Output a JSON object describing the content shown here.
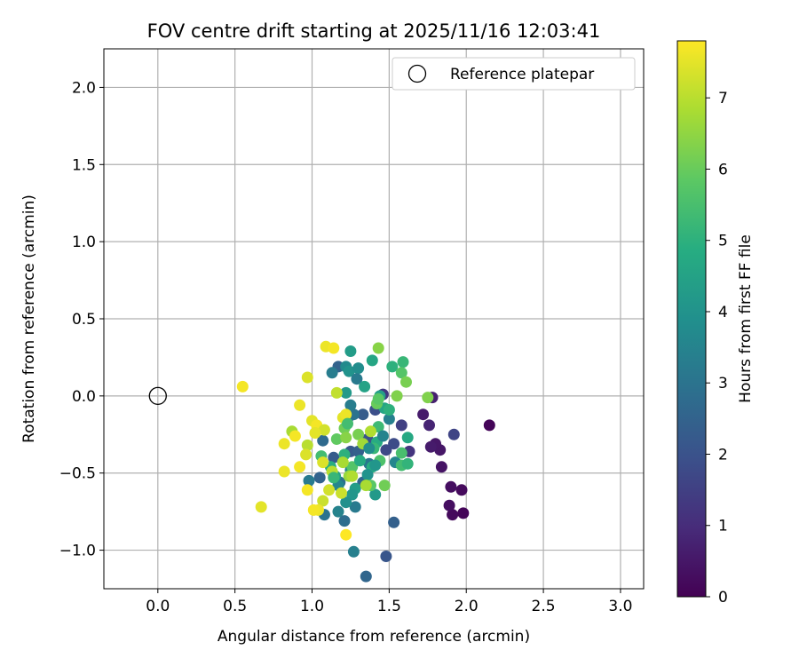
{
  "chart_data": {
    "type": "scatter",
    "title": "FOV centre drift starting at 2025/11/16 12:03:41",
    "xlabel": "Angular distance from reference (arcmin)",
    "ylabel": "Rotation from reference (arcmin)",
    "xlim": [
      -0.35,
      3.15
    ],
    "ylim": [
      -1.25,
      2.25
    ],
    "xticks": [
      0.0,
      0.5,
      1.0,
      1.5,
      2.0,
      2.5,
      3.0
    ],
    "xtick_labels": [
      "0.0",
      "0.5",
      "1.0",
      "1.5",
      "2.0",
      "2.5",
      "3.0"
    ],
    "yticks": [
      -1.0,
      -0.5,
      0.0,
      0.5,
      1.0,
      1.5,
      2.0
    ],
    "ytick_labels": [
      "−1.0",
      "−0.5",
      "0.0",
      "0.5",
      "1.0",
      "1.5",
      "2.0"
    ],
    "grid": true,
    "legend": {
      "placement": "top-right",
      "entries": [
        "Reference platepar"
      ]
    },
    "reference_point": {
      "x": 0.0,
      "y": 0.0,
      "label": "Reference platepar"
    },
    "colorbar": {
      "label": "Hours from first FF file",
      "colormap": "viridis",
      "range": [
        0,
        7.8
      ],
      "ticks": [
        0,
        1,
        2,
        3,
        4,
        5,
        6,
        7
      ],
      "tick_labels": [
        "0",
        "1",
        "2",
        "3",
        "4",
        "5",
        "6",
        "7"
      ]
    },
    "points": [
      {
        "x": 2.15,
        "y": -0.19,
        "h": 0.1
      },
      {
        "x": 1.98,
        "y": -0.76,
        "h": 0.1
      },
      {
        "x": 1.91,
        "y": -0.77,
        "h": 0.2
      },
      {
        "x": 1.97,
        "y": -0.61,
        "h": 0.2
      },
      {
        "x": 1.89,
        "y": -0.71,
        "h": 0.3
      },
      {
        "x": 1.9,
        "y": -0.59,
        "h": 0.3
      },
      {
        "x": 1.84,
        "y": -0.46,
        "h": 0.4
      },
      {
        "x": 1.83,
        "y": -0.35,
        "h": 0.5
      },
      {
        "x": 1.8,
        "y": -0.31,
        "h": 0.5
      },
      {
        "x": 1.77,
        "y": -0.33,
        "h": 0.6
      },
      {
        "x": 1.72,
        "y": -0.12,
        "h": 0.6
      },
      {
        "x": 1.78,
        "y": -0.01,
        "h": 0.7
      },
      {
        "x": 1.76,
        "y": -0.19,
        "h": 0.8
      },
      {
        "x": 1.92,
        "y": -0.25,
        "h": 1.6
      },
      {
        "x": 1.63,
        "y": -0.36,
        "h": 1.2
      },
      {
        "x": 1.58,
        "y": -0.19,
        "h": 1.5
      },
      {
        "x": 1.53,
        "y": -0.31,
        "h": 1.8
      },
      {
        "x": 1.46,
        "y": 0.01,
        "h": 1.3
      },
      {
        "x": 1.41,
        "y": -0.09,
        "h": 1.9
      },
      {
        "x": 1.48,
        "y": -0.35,
        "h": 1.7
      },
      {
        "x": 1.48,
        "y": -1.04,
        "h": 2.1
      },
      {
        "x": 1.53,
        "y": -0.82,
        "h": 2.4
      },
      {
        "x": 1.35,
        "y": -1.17,
        "h": 2.6
      },
      {
        "x": 1.27,
        "y": -1.01,
        "h": 3.4
      },
      {
        "x": 1.25,
        "y": -0.36,
        "h": 2.2
      },
      {
        "x": 1.21,
        "y": -0.81,
        "h": 2.8
      },
      {
        "x": 1.28,
        "y": -0.72,
        "h": 3.2
      },
      {
        "x": 1.17,
        "y": -0.75,
        "h": 3.5
      },
      {
        "x": 1.08,
        "y": -0.77,
        "h": 3.0
      },
      {
        "x": 1.05,
        "y": -0.53,
        "h": 2.5
      },
      {
        "x": 0.98,
        "y": -0.55,
        "h": 3.2
      },
      {
        "x": 1.07,
        "y": -0.29,
        "h": 2.7
      },
      {
        "x": 1.14,
        "y": -0.4,
        "h": 2.3
      },
      {
        "x": 1.18,
        "y": -0.56,
        "h": 2.9
      },
      {
        "x": 1.25,
        "y": -0.48,
        "h": 3.6
      },
      {
        "x": 1.33,
        "y": -0.56,
        "h": 2.6
      },
      {
        "x": 1.37,
        "y": -0.44,
        "h": 3.1
      },
      {
        "x": 1.3,
        "y": -0.36,
        "h": 2.4
      },
      {
        "x": 1.36,
        "y": -0.28,
        "h": 2.0
      },
      {
        "x": 1.33,
        "y": -0.12,
        "h": 2.3
      },
      {
        "x": 1.23,
        "y": -0.15,
        "h": 2.7
      },
      {
        "x": 1.27,
        "y": -0.12,
        "h": 3.0
      },
      {
        "x": 1.17,
        "y": 0.19,
        "h": 2.5
      },
      {
        "x": 1.13,
        "y": 0.15,
        "h": 3.3
      },
      {
        "x": 1.22,
        "y": 0.19,
        "h": 3.7
      },
      {
        "x": 1.24,
        "y": 0.16,
        "h": 4.0
      },
      {
        "x": 1.3,
        "y": 0.18,
        "h": 3.8
      },
      {
        "x": 1.29,
        "y": 0.11,
        "h": 3.2
      },
      {
        "x": 1.22,
        "y": 0.02,
        "h": 4.2
      },
      {
        "x": 1.25,
        "y": -0.06,
        "h": 3.3
      },
      {
        "x": 1.25,
        "y": 0.29,
        "h": 4.3
      },
      {
        "x": 1.34,
        "y": 0.06,
        "h": 4.5
      },
      {
        "x": 1.39,
        "y": 0.23,
        "h": 4.6
      },
      {
        "x": 1.44,
        "y": 0.0,
        "h": 4.4
      },
      {
        "x": 1.5,
        "y": -0.15,
        "h": 3.4
      },
      {
        "x": 1.47,
        "y": -0.08,
        "h": 4.6
      },
      {
        "x": 1.52,
        "y": 0.19,
        "h": 5.0
      },
      {
        "x": 1.59,
        "y": 0.22,
        "h": 5.2
      },
      {
        "x": 1.58,
        "y": 0.15,
        "h": 5.7
      },
      {
        "x": 1.43,
        "y": -0.2,
        "h": 5.3
      },
      {
        "x": 1.42,
        "y": -0.3,
        "h": 4.8
      },
      {
        "x": 1.4,
        "y": -0.34,
        "h": 5.2
      },
      {
        "x": 1.44,
        "y": -0.42,
        "h": 5.6
      },
      {
        "x": 1.39,
        "y": -0.46,
        "h": 4.9
      },
      {
        "x": 1.41,
        "y": -0.45,
        "h": 4.1
      },
      {
        "x": 1.41,
        "y": -0.64,
        "h": 4.2
      },
      {
        "x": 1.36,
        "y": -0.51,
        "h": 4.0
      },
      {
        "x": 1.38,
        "y": -0.58,
        "h": 5.8
      },
      {
        "x": 1.47,
        "y": -0.58,
        "h": 6.1
      },
      {
        "x": 1.54,
        "y": -0.43,
        "h": 3.6
      },
      {
        "x": 1.58,
        "y": -0.45,
        "h": 5.4
      },
      {
        "x": 1.62,
        "y": -0.44,
        "h": 5.1
      },
      {
        "x": 1.58,
        "y": -0.37,
        "h": 5.5
      },
      {
        "x": 1.62,
        "y": -0.27,
        "h": 4.7
      },
      {
        "x": 1.5,
        "y": -0.09,
        "h": 5.0
      },
      {
        "x": 1.55,
        "y": 0.0,
        "h": 6.3
      },
      {
        "x": 1.61,
        "y": 0.09,
        "h": 6.2
      },
      {
        "x": 1.43,
        "y": 0.31,
        "h": 6.4
      },
      {
        "x": 1.75,
        "y": -0.01,
        "h": 6.3
      },
      {
        "x": 1.28,
        "y": -0.6,
        "h": 4.3
      },
      {
        "x": 1.26,
        "y": -0.64,
        "h": 4.1
      },
      {
        "x": 1.22,
        "y": -0.69,
        "h": 3.9
      },
      {
        "x": 1.17,
        "y": -0.58,
        "h": 3.6
      },
      {
        "x": 1.15,
        "y": -0.52,
        "h": 4.6
      },
      {
        "x": 1.21,
        "y": -0.38,
        "h": 5.0
      },
      {
        "x": 1.12,
        "y": -0.46,
        "h": 4.9
      },
      {
        "x": 1.06,
        "y": -0.39,
        "h": 5.4
      },
      {
        "x": 1.16,
        "y": -0.28,
        "h": 5.9
      },
      {
        "x": 1.21,
        "y": -0.21,
        "h": 6.1
      },
      {
        "x": 1.22,
        "y": -0.27,
        "h": 6.4
      },
      {
        "x": 1.26,
        "y": -0.46,
        "h": 5.7
      },
      {
        "x": 1.3,
        "y": -0.25,
        "h": 6.2
      },
      {
        "x": 1.33,
        "y": -0.31,
        "h": 6.7
      },
      {
        "x": 1.38,
        "y": -0.23,
        "h": 6.9
      },
      {
        "x": 1.24,
        "y": -0.52,
        "h": 6.6
      },
      {
        "x": 1.2,
        "y": -0.43,
        "h": 6.8
      },
      {
        "x": 1.13,
        "y": -0.49,
        "h": 7.0
      },
      {
        "x": 1.19,
        "y": -0.63,
        "h": 7.2
      },
      {
        "x": 1.11,
        "y": -0.61,
        "h": 7.3
      },
      {
        "x": 1.07,
        "y": -0.43,
        "h": 7.4
      },
      {
        "x": 1.16,
        "y": 0.02,
        "h": 7.1
      },
      {
        "x": 1.2,
        "y": -0.14,
        "h": 7.5
      },
      {
        "x": 1.22,
        "y": -0.12,
        "h": 7.6
      },
      {
        "x": 1.09,
        "y": 0.32,
        "h": 7.6
      },
      {
        "x": 1.14,
        "y": 0.31,
        "h": 7.7
      },
      {
        "x": 0.97,
        "y": 0.12,
        "h": 7.4
      },
      {
        "x": 0.55,
        "y": 0.06,
        "h": 7.7
      },
      {
        "x": 0.92,
        "y": -0.06,
        "h": 7.6
      },
      {
        "x": 1.0,
        "y": -0.16,
        "h": 7.5
      },
      {
        "x": 1.03,
        "y": -0.19,
        "h": 7.7
      },
      {
        "x": 1.08,
        "y": -0.22,
        "h": 7.3
      },
      {
        "x": 0.87,
        "y": -0.23,
        "h": 6.8
      },
      {
        "x": 0.89,
        "y": -0.26,
        "h": 7.7
      },
      {
        "x": 0.82,
        "y": -0.31,
        "h": 7.6
      },
      {
        "x": 0.97,
        "y": -0.32,
        "h": 7.0
      },
      {
        "x": 1.02,
        "y": -0.24,
        "h": 7.5
      },
      {
        "x": 0.96,
        "y": -0.38,
        "h": 7.4
      },
      {
        "x": 0.92,
        "y": -0.46,
        "h": 7.7
      },
      {
        "x": 0.82,
        "y": -0.49,
        "h": 7.6
      },
      {
        "x": 0.97,
        "y": -0.61,
        "h": 7.7
      },
      {
        "x": 1.07,
        "y": -0.68,
        "h": 7.2
      },
      {
        "x": 1.04,
        "y": -0.74,
        "h": 7.6
      },
      {
        "x": 1.01,
        "y": -0.74,
        "h": 7.7
      },
      {
        "x": 0.67,
        "y": -0.72,
        "h": 7.5
      },
      {
        "x": 1.22,
        "y": -0.9,
        "h": 7.8
      },
      {
        "x": 1.35,
        "y": -0.58,
        "h": 6.8
      },
      {
        "x": 1.26,
        "y": -0.52,
        "h": 6.9
      },
      {
        "x": 1.42,
        "y": -0.05,
        "h": 6.0
      },
      {
        "x": 1.43,
        "y": -0.02,
        "h": 5.8
      },
      {
        "x": 1.14,
        "y": -0.53,
        "h": 5.2
      },
      {
        "x": 1.23,
        "y": -0.18,
        "h": 5.4
      },
      {
        "x": 1.31,
        "y": -0.42,
        "h": 4.8
      },
      {
        "x": 1.37,
        "y": -0.34,
        "h": 3.8
      },
      {
        "x": 1.46,
        "y": -0.26,
        "h": 3.5
      }
    ]
  }
}
